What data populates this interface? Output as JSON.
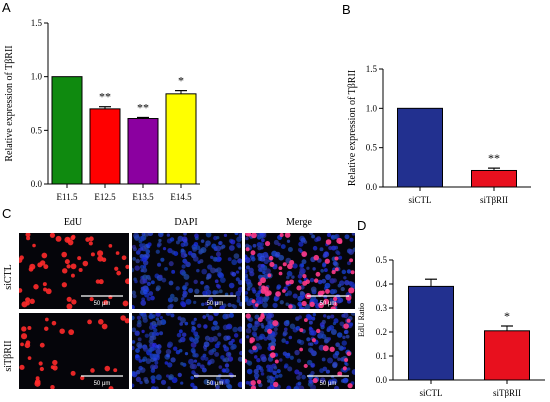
{
  "panel_labels": {
    "a": "A",
    "b": "B",
    "c": "C",
    "d": "D"
  },
  "chart_data": [
    {
      "panel": "A",
      "type": "bar",
      "categories": [
        "E11.5",
        "E12.5",
        "E13.5",
        "E14.5"
      ],
      "values": [
        1.0,
        0.7,
        0.61,
        0.84
      ],
      "errors": [
        0,
        0.02,
        0.01,
        0.03
      ],
      "colors": [
        "#0f8a0f",
        "#ff0000",
        "#8b00a0",
        "#ffff00"
      ],
      "significance": [
        "",
        "**",
        "**",
        "*"
      ],
      "ylabel": "Relative expression of TβRII",
      "ylim": [
        0,
        1.5
      ],
      "yticks": [
        "0.0",
        "0.5",
        "1.0",
        "1.5"
      ]
    },
    {
      "panel": "B",
      "type": "bar",
      "categories": [
        "siCTL",
        "siTβRII"
      ],
      "values": [
        1.0,
        0.21
      ],
      "errors": [
        0,
        0.03
      ],
      "colors": [
        "#22308f",
        "#e8101e"
      ],
      "significance": [
        "",
        "**"
      ],
      "ylabel": "Relative expression of TβRII",
      "ylim": [
        0,
        1.5
      ],
      "yticks": [
        "0.0",
        "0.5",
        "1.0",
        "1.5"
      ]
    },
    {
      "panel": "D",
      "type": "bar",
      "categories": [
        "siCTL",
        "siTβRII"
      ],
      "values": [
        0.39,
        0.205
      ],
      "errors": [
        0.03,
        0.02
      ],
      "colors": [
        "#22308f",
        "#e8101e"
      ],
      "significance": [
        "",
        "*"
      ],
      "ylabel": "EdU Ratio",
      "ylim": [
        0,
        0.5
      ],
      "yticks": [
        "0.0",
        "0.1",
        "0.2",
        "0.3",
        "0.4",
        "0.5"
      ]
    }
  ],
  "microscopy": {
    "columns": [
      "EdU",
      "DAPI",
      "Merge"
    ],
    "rows": [
      "siCTL",
      "siTβRII"
    ],
    "scale_bar": "50 μm"
  }
}
